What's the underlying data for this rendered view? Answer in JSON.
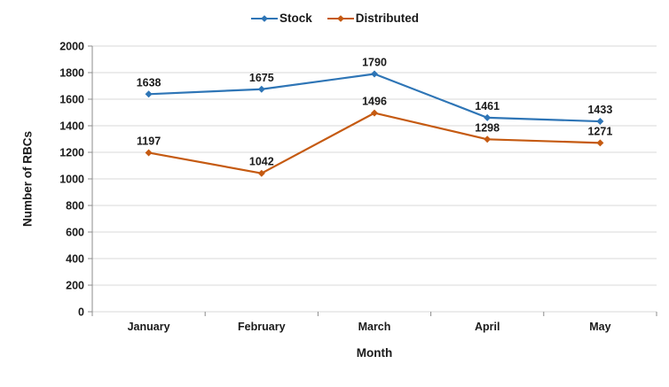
{
  "chart_data": {
    "type": "line",
    "categories": [
      "January",
      "February",
      "March",
      "April",
      "May"
    ],
    "series": [
      {
        "name": "Stock",
        "color": "#2E75B6",
        "values": [
          1638,
          1675,
          1790,
          1461,
          1433
        ]
      },
      {
        "name": "Distributed",
        "color": "#C55A11",
        "values": [
          1197,
          1042,
          1496,
          1298,
          1271
        ]
      }
    ],
    "xlabel": "Month",
    "ylabel": "Number of RBCs",
    "ylim": [
      0,
      2000
    ],
    "ytick_step": 200,
    "grid": true,
    "legend_position": "top",
    "marker": "diamond",
    "data_labels": true
  },
  "style": {
    "gridline_color": "#D9D9D9",
    "axis_color": "#8C8C8C",
    "text_color": "#1A1A1A",
    "background": "#FFFFFF"
  }
}
